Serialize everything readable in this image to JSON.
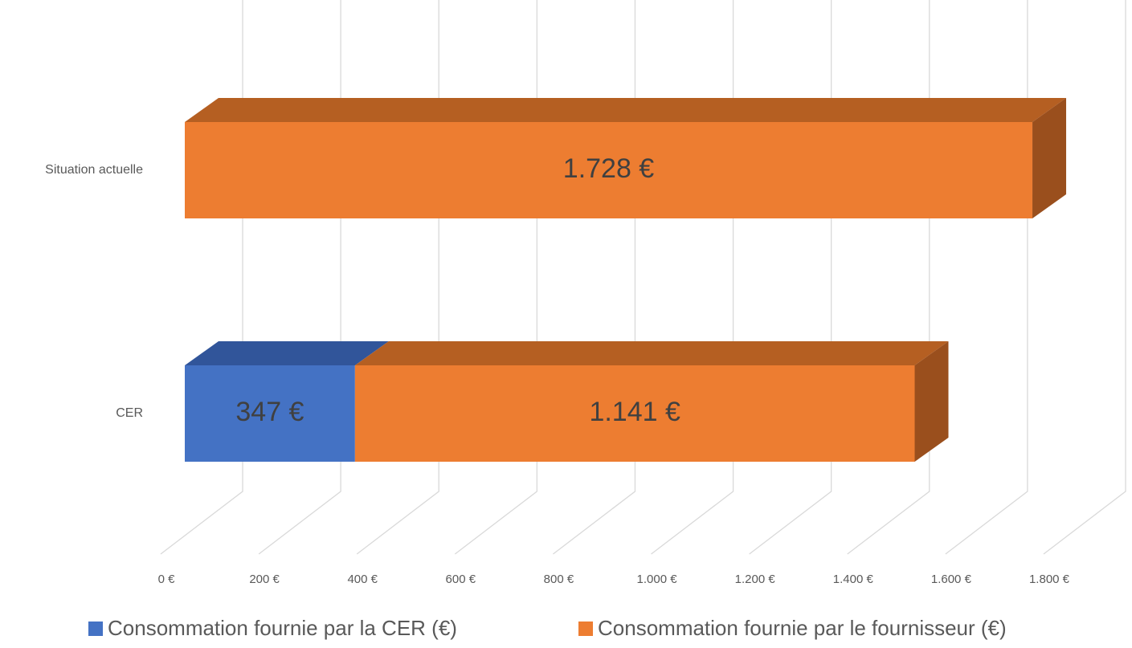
{
  "chart_data": {
    "type": "bar3d_stacked_horizontal",
    "categories": [
      "Situation actuelle",
      "CER"
    ],
    "series": [
      {
        "name": "Consommation fournie par la CER (€)",
        "color": "#4472c4",
        "top_color": "#31559a",
        "values": [
          null,
          347
        ],
        "value_labels": [
          null,
          "347 €"
        ]
      },
      {
        "name": "Consommation fournie par le fournisseur (€)",
        "color": "#ed7d31",
        "top_color": "#b55f22",
        "side_color": "#9a4f1d",
        "values": [
          1728,
          1141
        ],
        "value_labels": [
          "1.728 €",
          "1.141 €"
        ]
      }
    ],
    "xlim": [
      0,
      1800
    ],
    "xticks": [
      {
        "value": 0,
        "label": "0 €"
      },
      {
        "value": 200,
        "label": "200 €"
      },
      {
        "value": 400,
        "label": "400 €"
      },
      {
        "value": 600,
        "label": "600 €"
      },
      {
        "value": 800,
        "label": "800 €"
      },
      {
        "value": 1000,
        "label": "1.000 €"
      },
      {
        "value": 1200,
        "label": "1.200 €"
      },
      {
        "value": 1400,
        "label": "1.400 €"
      },
      {
        "value": 1600,
        "label": "1.600 €"
      },
      {
        "value": 1800,
        "label": "1.800 €"
      }
    ],
    "grid": true,
    "legend": "bottom"
  }
}
